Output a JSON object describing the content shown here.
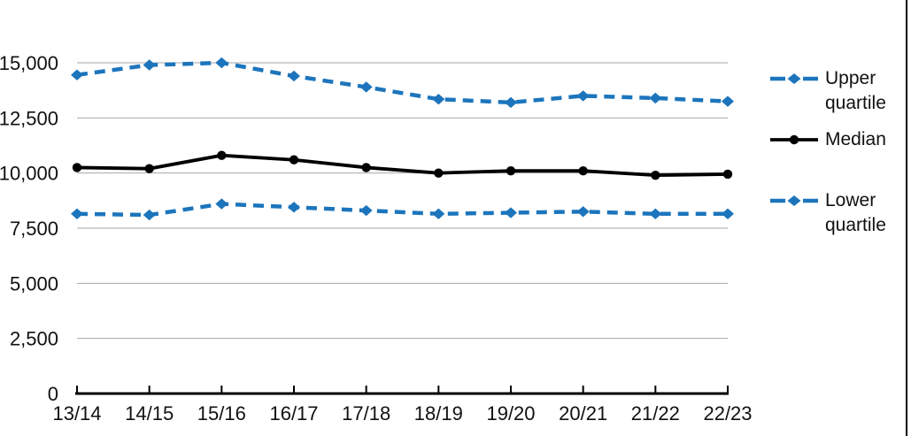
{
  "colors": {
    "series_blue": "#1C75BC",
    "series_black": "#000000",
    "gridline": "#A6A6A6",
    "axis": "#000000",
    "text": "#111111"
  },
  "legend": {
    "items": [
      {
        "label": "Upper quartile"
      },
      {
        "label": "Median"
      },
      {
        "label": "Lower quartile"
      }
    ]
  },
  "chart_data": {
    "type": "line",
    "title": "",
    "xlabel": "",
    "ylabel": "",
    "categories": [
      "13/14",
      "14/15",
      "15/16",
      "16/17",
      "17/18",
      "18/19",
      "19/20",
      "20/21",
      "21/22",
      "22/23"
    ],
    "series": [
      {
        "name": "Upper quartile",
        "color": "#1C75BC",
        "style": "dashed",
        "marker": "diamond",
        "values": [
          14450,
          14900,
          15000,
          14400,
          13900,
          13350,
          13200,
          13500,
          13400,
          13250
        ]
      },
      {
        "name": "Median",
        "color": "#000000",
        "style": "solid",
        "marker": "circle",
        "values": [
          10250,
          10200,
          10800,
          10600,
          10250,
          10000,
          10100,
          10100,
          9900,
          9950
        ]
      },
      {
        "name": "Lower quartile",
        "color": "#1C75BC",
        "style": "dashed",
        "marker": "diamond",
        "values": [
          8150,
          8100,
          8600,
          8450,
          8300,
          8150,
          8200,
          8250,
          8150,
          8150
        ]
      }
    ],
    "ylim": [
      0,
      15000
    ],
    "yticks": [
      {
        "value": 0,
        "label": "0"
      },
      {
        "value": 2500,
        "label": "2,500"
      },
      {
        "value": 5000,
        "label": "5,000"
      },
      {
        "value": 7500,
        "label": "7,500"
      },
      {
        "value": 10000,
        "label": "10,000"
      },
      {
        "value": 12500,
        "label": "12,500"
      },
      {
        "value": 15000,
        "label": "15,000"
      }
    ],
    "grid": true,
    "legend_position": "right"
  }
}
